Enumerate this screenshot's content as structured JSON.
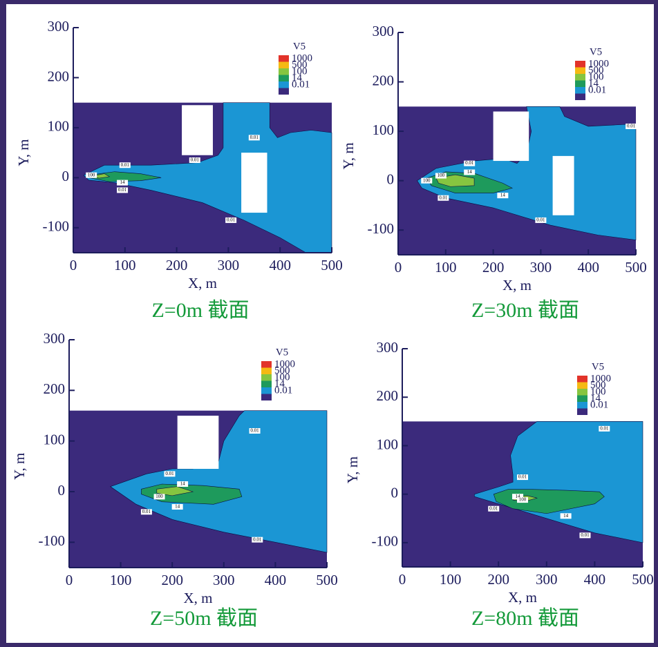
{
  "chart_data": [
    {
      "type": "contour",
      "title": "Z=0m 截面",
      "xlabel": "X, m",
      "ylabel": "Y, m",
      "xlim": [
        0,
        500
      ],
      "ylim": [
        -150,
        300
      ],
      "xticks": [
        0,
        100,
        200,
        300,
        400,
        500
      ],
      "yticks": [
        -100,
        0,
        100,
        200,
        300
      ],
      "domain": {
        "x": [
          0,
          500
        ],
        "y": [
          -150,
          150
        ]
      },
      "background_color": "#3b2a7c",
      "legend_title": "V5",
      "levels": [
        {
          "value": 1000,
          "color": "#e2332a"
        },
        {
          "value": 500,
          "color": "#f5b913"
        },
        {
          "value": 100,
          "color": "#86c540",
          "regions": [
            {
              "x": [
                35,
                60,
                70,
                50
              ],
              "y": [
                3,
                8,
                2,
                -1
              ]
            }
          ]
        },
        {
          "value": 14,
          "color": "#1e9a5c",
          "regions": [
            {
              "x": [
                30,
                80,
                130,
                170,
                130,
                70,
                30
              ],
              "y": [
                5,
                12,
                8,
                0,
                -6,
                -8,
                0
              ]
            }
          ]
        },
        {
          "value": 0.01,
          "color": "#1b96d4",
          "regions": [
            {
              "x": [
                20,
                60,
                150,
                240,
                280,
                290,
                290,
                380,
                380,
                395,
                420,
                460,
                500,
                500,
                450,
                400,
                330,
                250,
                150,
                80,
                30
              ],
              "y": [
                5,
                25,
                25,
                30,
                45,
                60,
                150,
                150,
                100,
                80,
                90,
                95,
                90,
                -150,
                -150,
                -120,
                -85,
                -50,
                -25,
                -10,
                -5
              ]
            }
          ]
        }
      ],
      "buildings": [
        {
          "x": [
            210,
            270
          ],
          "y": [
            45,
            145
          ]
        },
        {
          "x": [
            325,
            375
          ],
          "y": [
            -70,
            50
          ]
        }
      ],
      "contour_labels": [
        {
          "value": 0.01,
          "x": 100,
          "y": 25
        },
        {
          "value": 0.01,
          "x": 235,
          "y": 35
        },
        {
          "value": 0.01,
          "x": 350,
          "y": 80
        },
        {
          "value": 0.01,
          "x": 95,
          "y": -25
        },
        {
          "value": 0.01,
          "x": 305,
          "y": -85
        },
        {
          "value": 14,
          "x": 95,
          "y": -10
        },
        {
          "value": 100,
          "x": 35,
          "y": 5
        }
      ]
    },
    {
      "type": "contour",
      "title": "Z=30m 截面",
      "xlabel": "X, m",
      "ylabel": "Y, m",
      "xlim": [
        0,
        500
      ],
      "ylim": [
        -150,
        300
      ],
      "xticks": [
        0,
        100,
        200,
        300,
        400,
        500
      ],
      "yticks": [
        -100,
        0,
        100,
        200,
        300
      ],
      "domain": {
        "x": [
          0,
          500
        ],
        "y": [
          -150,
          150
        ]
      },
      "background_color": "#3b2a7c",
      "legend_title": "V5",
      "levels": [
        {
          "value": 1000,
          "color": "#e2332a"
        },
        {
          "value": 500,
          "color": "#f5b913"
        },
        {
          "value": 100,
          "color": "#86c540",
          "regions": [
            {
              "x": [
                80,
                120,
                160,
                160,
                110,
                85
              ],
              "y": [
                5,
                12,
                5,
                -10,
                -12,
                -5
              ]
            }
          ]
        },
        {
          "value": 14,
          "color": "#1e9a5c",
          "regions": [
            {
              "x": [
                60,
                100,
                160,
                220,
                240,
                200,
                120,
                70
              ],
              "y": [
                5,
                18,
                15,
                -5,
                -15,
                -25,
                -25,
                -10
              ]
            }
          ]
        },
        {
          "value": 0.01,
          "color": "#1b96d4",
          "regions": [
            {
              "x": [
                40,
                80,
                160,
                220,
                250,
                270,
                280,
                270,
                340,
                350,
                400,
                500,
                500,
                420,
                320,
                200,
                100,
                50
              ],
              "y": [
                0,
                25,
                40,
                45,
                35,
                55,
                100,
                150,
                150,
                130,
                110,
                115,
                -120,
                -110,
                -90,
                -55,
                -35,
                -15
              ]
            }
          ]
        }
      ],
      "buildings": [
        {
          "x": [
            200,
            275
          ],
          "y": [
            40,
            140
          ]
        },
        {
          "x": [
            325,
            370
          ],
          "y": [
            -70,
            50
          ]
        }
      ],
      "contour_labels": [
        {
          "value": 0.01,
          "x": 150,
          "y": 35
        },
        {
          "value": 0.01,
          "x": 95,
          "y": -35
        },
        {
          "value": 0.01,
          "x": 300,
          "y": -80
        },
        {
          "value": 0.01,
          "x": 490,
          "y": 110
        },
        {
          "value": 14,
          "x": 150,
          "y": 17
        },
        {
          "value": 14,
          "x": 220,
          "y": -30
        },
        {
          "value": 100,
          "x": 60,
          "y": 0
        },
        {
          "value": 100,
          "x": 90,
          "y": 10
        }
      ]
    },
    {
      "type": "contour",
      "title": "Z=50m 截面",
      "xlabel": "X, m",
      "ylabel": "Y, m",
      "xlim": [
        0,
        500
      ],
      "ylim": [
        -150,
        300
      ],
      "xticks": [
        0,
        100,
        200,
        300,
        400,
        500
      ],
      "yticks": [
        -100,
        0,
        100,
        200,
        300
      ],
      "domain": {
        "x": [
          0,
          500
        ],
        "y": [
          -150,
          160
        ]
      },
      "background_color": "#3b2a7c",
      "legend_title": "V5",
      "levels": [
        {
          "value": 1000,
          "color": "#e2332a"
        },
        {
          "value": 500,
          "color": "#f5b913"
        },
        {
          "value": 100,
          "color": "#86c540",
          "regions": [
            {
              "x": [
                170,
                210,
                240,
                200,
                170
              ],
              "y": [
                5,
                10,
                0,
                -8,
                -3
              ]
            }
          ]
        },
        {
          "value": 14,
          "color": "#1e9a5c",
          "regions": [
            {
              "x": [
                140,
                180,
                260,
                330,
                335,
                280,
                180,
                140
              ],
              "y": [
                5,
                15,
                12,
                5,
                -10,
                -25,
                -20,
                -5
              ]
            }
          ]
        },
        {
          "value": 0.01,
          "color": "#1b96d4",
          "regions": [
            {
              "x": [
                80,
                150,
                200,
                240,
                290,
                300,
                330,
                340,
                500,
                500,
                400,
                300,
                200,
                130
              ],
              "y": [
                10,
                35,
                45,
                45,
                60,
                100,
                150,
                160,
                160,
                -120,
                -100,
                -80,
                -55,
                -25
              ]
            }
          ]
        }
      ],
      "buildings": [
        {
          "x": [
            210,
            290
          ],
          "y": [
            45,
            150
          ]
        }
      ],
      "contour_labels": [
        {
          "value": 0.01,
          "x": 195,
          "y": 35
        },
        {
          "value": 0.01,
          "x": 360,
          "y": 120
        },
        {
          "value": 0.01,
          "x": 150,
          "y": -40
        },
        {
          "value": 0.01,
          "x": 365,
          "y": -95
        },
        {
          "value": 14,
          "x": 220,
          "y": 15
        },
        {
          "value": 14,
          "x": 210,
          "y": -30
        },
        {
          "value": 100,
          "x": 175,
          "y": -10
        }
      ]
    },
    {
      "type": "contour",
      "title": "Z=80m 截面",
      "xlabel": "X, m",
      "ylabel": "Y, m",
      "xlim": [
        0,
        500
      ],
      "ylim": [
        -150,
        300
      ],
      "xticks": [
        0,
        100,
        200,
        300,
        400,
        500
      ],
      "yticks": [
        -100,
        0,
        100,
        200,
        300
      ],
      "domain": {
        "x": [
          0,
          500
        ],
        "y": [
          -150,
          150
        ]
      },
      "background_color": "#3b2a7c",
      "legend_title": "V5",
      "levels": [
        {
          "value": 1000,
          "color": "#e2332a"
        },
        {
          "value": 500,
          "color": "#f5b913"
        },
        {
          "value": 100,
          "color": "#86c540",
          "regions": [
            {
              "x": [
                230,
                260,
                280,
                255,
                230
              ],
              "y": [
                -5,
                -3,
                -8,
                -15,
                -12
              ]
            }
          ]
        },
        {
          "value": 14,
          "color": "#1e9a5c",
          "regions": [
            {
              "x": [
                190,
                220,
                270,
                340,
                410,
                420,
                400,
                300,
                230,
                195
              ],
              "y": [
                0,
                10,
                10,
                8,
                5,
                -5,
                -20,
                -40,
                -30,
                -15
              ]
            }
          ]
        },
        {
          "value": 0.01,
          "color": "#1b96d4",
          "regions": [
            {
              "x": [
                150,
                200,
                230,
                230,
                225,
                240,
                280,
                500,
                500,
                400,
                300,
                200,
                150
              ],
              "y": [
                0,
                15,
                25,
                40,
                80,
                120,
                150,
                150,
                -100,
                -80,
                -50,
                -20,
                -5
              ]
            }
          ]
        }
      ],
      "contour_labels": [
        {
          "value": 0.01,
          "x": 250,
          "y": 35
        },
        {
          "value": 0.01,
          "x": 190,
          "y": -30
        },
        {
          "value": 0.01,
          "x": 380,
          "y": -85
        },
        {
          "value": 0.01,
          "x": 420,
          "y": 135
        },
        {
          "value": 14,
          "x": 240,
          "y": -5
        },
        {
          "value": 14,
          "x": 340,
          "y": -45
        },
        {
          "value": 100,
          "x": 250,
          "y": -12
        }
      ]
    }
  ]
}
